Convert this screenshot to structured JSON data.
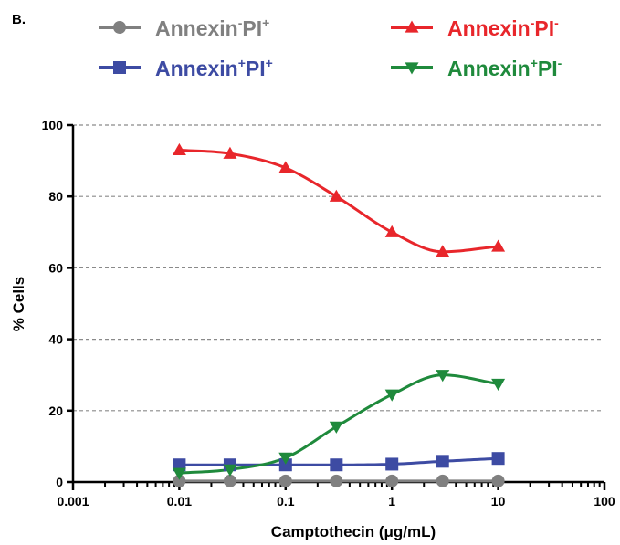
{
  "panel_label": "B.",
  "chart_data": {
    "type": "scatter",
    "xlabel": "Camptothecin (μg/mL)",
    "ylabel": "% Cells",
    "x_scale": "log",
    "xlim": [
      0.001,
      100
    ],
    "ylim": [
      0,
      100
    ],
    "x_ticks": [
      "0.001",
      "0.01",
      "0.1",
      "1",
      "10",
      "100"
    ],
    "y_ticks": [
      "0",
      "20",
      "40",
      "60",
      "80",
      "100"
    ],
    "grid": "horizontal dashed",
    "legend_position": "top",
    "x": [
      0.01,
      0.03,
      0.1,
      0.3,
      1,
      3,
      10
    ],
    "series": [
      {
        "name": "Annexin-PI+",
        "legend": {
          "base": "Annexin",
          "sup1": "-",
          "mid": "PI",
          "sup2": "+"
        },
        "color": "#808080",
        "marker": "circle",
        "values": [
          0.3,
          0.3,
          0.3,
          0.3,
          0.3,
          0.3,
          0.3
        ]
      },
      {
        "name": "Annexin-PI-",
        "legend": {
          "base": "Annexin",
          "sup1": "-",
          "mid": "PI",
          "sup2": "-"
        },
        "color": "#e8262b",
        "marker": "triangle-up",
        "values": [
          93,
          92,
          88,
          80,
          70,
          64.5,
          66
        ]
      },
      {
        "name": "Annexin+PI+",
        "legend": {
          "base": "Annexin",
          "sup1": "+",
          "mid": "PI",
          "sup2": "+"
        },
        "color": "#3d4ba3",
        "marker": "square",
        "values": [
          4.8,
          4.8,
          4.8,
          4.8,
          5.0,
          5.8,
          6.6
        ]
      },
      {
        "name": "Annexin+PI-",
        "legend": {
          "base": "Annexin",
          "sup1": "+",
          "mid": "PI",
          "sup2": "-"
        },
        "color": "#1f8a3c",
        "marker": "triangle-down",
        "values": [
          2.5,
          3.5,
          6.8,
          15.5,
          24.5,
          30,
          27.5
        ]
      }
    ]
  }
}
